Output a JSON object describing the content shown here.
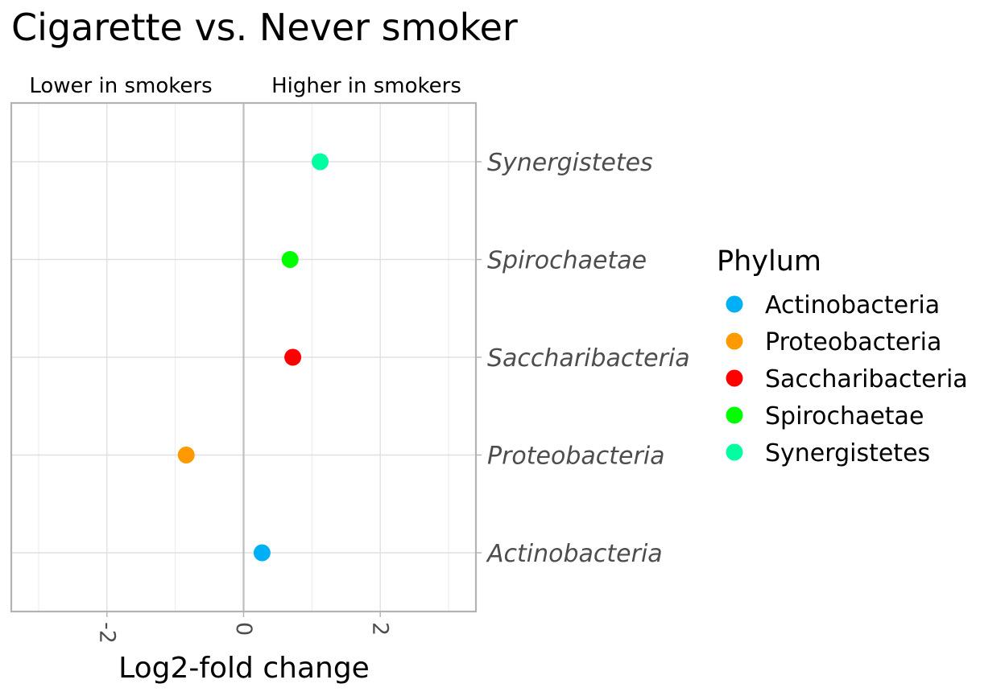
{
  "chart_data": {
    "type": "scatter",
    "title": "Cigarette vs. Never smoker",
    "annotations": {
      "left": "Lower in smokers",
      "right": "Higher in smokers"
    },
    "xlabel": "Log2-fold change",
    "ylabel": "",
    "xlim": [
      -3.4,
      3.4
    ],
    "xticks": [
      -2,
      0,
      2
    ],
    "xtick_labels": [
      "-2",
      "0",
      "2"
    ],
    "categories": [
      "Actinobacteria",
      "Proteobacteria",
      "Saccharibacteria",
      "Spirochaetae",
      "Synergistetes"
    ],
    "points": [
      {
        "category": "Actinobacteria",
        "x": 0.27,
        "phylum": "Actinobacteria"
      },
      {
        "category": "Proteobacteria",
        "x": -0.84,
        "phylum": "Proteobacteria"
      },
      {
        "category": "Saccharibacteria",
        "x": 0.72,
        "phylum": "Saccharibacteria"
      },
      {
        "category": "Spirochaetae",
        "x": 0.68,
        "phylum": "Spirochaetae"
      },
      {
        "category": "Synergistetes",
        "x": 1.12,
        "phylum": "Synergistetes"
      }
    ],
    "legend": {
      "title": "Phylum",
      "position": "right",
      "entries": [
        {
          "label": "Actinobacteria",
          "color": "#00B0F6"
        },
        {
          "label": "Proteobacteria",
          "color": "#FF9900"
        },
        {
          "label": "Saccharibacteria",
          "color": "#FF0000"
        },
        {
          "label": "Spirochaetae",
          "color": "#00FF00"
        },
        {
          "label": "Synergistetes",
          "color": "#00FFA0"
        }
      ]
    },
    "grid": true,
    "reference_line_x": 0
  }
}
